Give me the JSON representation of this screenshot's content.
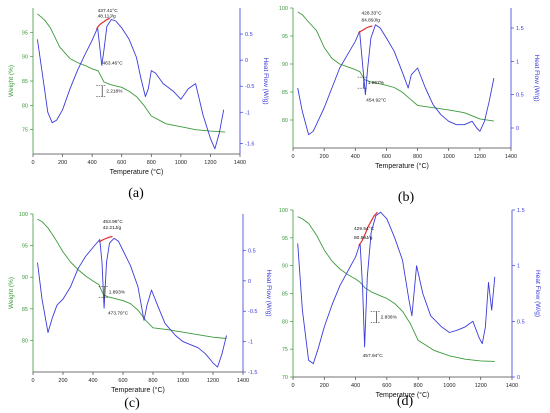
{
  "chart_data": [
    {
      "type": "line",
      "panel_label": "(a)",
      "xlabel": "Temperature (°C)",
      "ylabel_left": "Weight (%)",
      "ylabel_right": "Heat Flow (W/g)",
      "xlim": [
        0,
        1400
      ],
      "ylim_left": [
        70,
        100
      ],
      "ylim_right": [
        -1.8,
        1.0
      ],
      "xticks": [
        0,
        200,
        400,
        600,
        800,
        1000,
        1200,
        1400
      ],
      "yticks_left": [
        75,
        80,
        85,
        90,
        95
      ],
      "yticks_right": [
        -1.6,
        -1.0,
        -0.5,
        0.0,
        0.5
      ],
      "grid": false,
      "series": [
        {
          "axis": "left",
          "color": "#3c9a3c",
          "x": [
            30,
            80,
            120,
            180,
            250,
            300,
            350,
            400,
            440,
            480,
            520,
            560,
            600,
            650,
            700,
            750,
            800,
            900,
            1000,
            1100,
            1200,
            1300
          ],
          "y": [
            98.8,
            97.5,
            95.8,
            92.0,
            89.6,
            88.8,
            88.2,
            87.5,
            87.1,
            84.8,
            84.3,
            84.0,
            83.7,
            82.9,
            81.8,
            80.0,
            77.8,
            76.2,
            75.6,
            75.0,
            74.7,
            74.5
          ]
        },
        {
          "axis": "right",
          "color": "#3b3bdb",
          "x": [
            30,
            60,
            100,
            130,
            160,
            200,
            250,
            300,
            350,
            400,
            437,
            450,
            465,
            480,
            500,
            530,
            560,
            600,
            650,
            700,
            730,
            760,
            780,
            800,
            830,
            880,
            950,
            1000,
            1050,
            1100,
            1150,
            1200,
            1230,
            1260,
            1290
          ],
          "y": [
            0.4,
            -0.2,
            -1.0,
            -1.2,
            -1.15,
            -0.95,
            -0.55,
            -0.2,
            0.1,
            0.38,
            0.62,
            0.3,
            -0.1,
            0.2,
            0.65,
            0.78,
            0.75,
            0.62,
            0.4,
            0.05,
            -0.35,
            -0.7,
            -0.55,
            -0.2,
            -0.25,
            -0.45,
            -0.6,
            -0.75,
            -0.55,
            -0.45,
            -1.05,
            -1.5,
            -1.7,
            -1.4,
            -0.95
          ]
        },
        {
          "axis": "right",
          "color": "#e03030",
          "x": [
            430,
            445,
            460,
            480,
            500,
            520
          ],
          "y": [
            0.6,
            0.66,
            0.7,
            0.74,
            0.78,
            0.8
          ]
        }
      ],
      "annotations": [
        {
          "text": "437.41°C",
          "x": 437,
          "y": 0.92,
          "axis": "right"
        },
        {
          "text": "48.11J/g",
          "x": 437,
          "y": 0.82,
          "axis": "right"
        },
        {
          "text": "463.46°C",
          "x": 470,
          "y": -0.08,
          "axis": "right"
        },
        {
          "text": "2.218%",
          "x": 495,
          "y": 82.6,
          "axis": "left"
        }
      ]
    },
    {
      "type": "line",
      "panel_label": "(b)",
      "xlabel": "Temperature (°C)",
      "ylabel_left": "Weight (%)",
      "ylabel_right": "Heat Flow (W/g)",
      "xlim": [
        0,
        1400
      ],
      "ylim_left": [
        75,
        100
      ],
      "ylim_right": [
        -0.3,
        1.8
      ],
      "xticks": [
        0,
        200,
        400,
        600,
        800,
        1000,
        1200,
        1400
      ],
      "yticks_left": [
        80,
        85,
        90,
        95,
        100
      ],
      "yticks_right": [
        0.0,
        0.5,
        1.0,
        1.5
      ],
      "grid": false,
      "series": [
        {
          "axis": "left",
          "color": "#3c9a3c",
          "x": [
            30,
            60,
            100,
            150,
            200,
            250,
            300,
            350,
            400,
            430,
            460,
            500,
            550,
            600,
            650,
            700,
            750,
            800,
            900,
            1000,
            1100,
            1200,
            1290
          ],
          "y": [
            99.3,
            98.8,
            97.5,
            96.0,
            93.0,
            91.0,
            90.0,
            89.5,
            89.0,
            88.6,
            87.2,
            86.8,
            86.5,
            86.2,
            85.8,
            85.0,
            83.8,
            82.6,
            82.2,
            81.8,
            81.3,
            80.2,
            79.8
          ]
        },
        {
          "axis": "right",
          "color": "#3b3bdb",
          "x": [
            30,
            60,
            100,
            130,
            160,
            200,
            250,
            300,
            350,
            400,
            428,
            445,
            465,
            480,
            500,
            530,
            560,
            600,
            650,
            700,
            740,
            760,
            800,
            850,
            900,
            950,
            1000,
            1050,
            1100,
            1150,
            1180,
            1200,
            1230,
            1260,
            1290
          ],
          "y": [
            0.6,
            0.25,
            -0.1,
            -0.05,
            0.1,
            0.3,
            0.6,
            0.9,
            1.1,
            1.3,
            1.45,
            1.0,
            0.5,
            0.9,
            1.35,
            1.55,
            1.5,
            1.35,
            1.15,
            0.85,
            0.6,
            0.8,
            0.9,
            0.6,
            0.35,
            0.2,
            0.1,
            0.05,
            0.05,
            0.1,
            0.0,
            -0.05,
            0.1,
            0.4,
            0.75
          ]
        },
        {
          "axis": "right",
          "color": "#e03030",
          "x": [
            420,
            435,
            450,
            470,
            490,
            510
          ],
          "y": [
            1.42,
            1.45,
            1.47,
            1.5,
            1.52,
            1.53
          ]
        }
      ],
      "annotations": [
        {
          "text": "428.33°C",
          "x": 440,
          "y": 1.7,
          "axis": "right"
        },
        {
          "text": "84.89J/g",
          "x": 440,
          "y": 1.6,
          "axis": "right"
        },
        {
          "text": "454.92°C",
          "x": 470,
          "y": 0.4,
          "axis": "right"
        },
        {
          "text": "1.867%",
          "x": 480,
          "y": 86.4,
          "axis": "left"
        }
      ]
    },
    {
      "type": "line",
      "panel_label": "(c)",
      "xlabel": "Temperature (°C)",
      "ylabel_left": "Weight (%)",
      "ylabel_right": "Heat Flow (W/g)",
      "xlim": [
        0,
        1400
      ],
      "ylim_left": [
        75,
        100
      ],
      "ylim_right": [
        -1.5,
        1.1
      ],
      "xticks": [
        0,
        200,
        400,
        600,
        800,
        1000,
        1200,
        1400
      ],
      "yticks_left": [
        80,
        85,
        90,
        95,
        100
      ],
      "yticks_right": [
        -1.5,
        -1.0,
        -0.5,
        0.0,
        0.5
      ],
      "grid": false,
      "series": [
        {
          "axis": "left",
          "color": "#3c9a3c",
          "x": [
            30,
            60,
            100,
            150,
            200,
            250,
            300,
            350,
            400,
            440,
            470,
            500,
            550,
            600,
            650,
            700,
            750,
            800,
            900,
            1000,
            1100,
            1200,
            1290
          ],
          "y": [
            99.2,
            98.8,
            97.8,
            96.0,
            94.0,
            92.4,
            91.2,
            90.2,
            89.4,
            88.8,
            87.2,
            86.9,
            86.6,
            86.3,
            85.8,
            84.8,
            83.2,
            82.0,
            81.7,
            81.3,
            80.9,
            80.5,
            80.3
          ]
        },
        {
          "axis": "right",
          "color": "#3b3bdb",
          "x": [
            30,
            60,
            100,
            130,
            160,
            200,
            250,
            300,
            350,
            400,
            445,
            460,
            474,
            490,
            510,
            540,
            570,
            600,
            650,
            700,
            740,
            760,
            790,
            830,
            880,
            950,
            1000,
            1050,
            1100,
            1150,
            1200,
            1230,
            1260,
            1290
          ],
          "y": [
            0.3,
            -0.3,
            -0.85,
            -0.6,
            -0.4,
            -0.3,
            -0.1,
            0.2,
            0.4,
            0.55,
            0.68,
            0.3,
            -0.45,
            0.3,
            0.62,
            0.7,
            0.65,
            0.5,
            0.25,
            -0.1,
            -0.65,
            -0.4,
            -0.15,
            -0.4,
            -0.7,
            -0.9,
            -1.0,
            -1.05,
            -1.1,
            -1.2,
            -1.35,
            -1.42,
            -1.2,
            -0.9
          ]
        },
        {
          "axis": "right",
          "color": "#e03030",
          "x": [
            440,
            455,
            470,
            490,
            510,
            530
          ],
          "y": [
            0.64,
            0.66,
            0.68,
            0.7,
            0.72,
            0.73
          ]
        }
      ],
      "annotations": [
        {
          "text": "453.96°C",
          "x": 465,
          "y": 0.95,
          "axis": "right"
        },
        {
          "text": "42.21J/g",
          "x": 465,
          "y": 0.85,
          "axis": "right"
        },
        {
          "text": "473.79°C",
          "x": 500,
          "y": -0.55,
          "axis": "right"
        },
        {
          "text": "1.893%",
          "x": 505,
          "y": 87.4,
          "axis": "left"
        }
      ]
    },
    {
      "type": "line",
      "panel_label": "(d)",
      "xlabel": "Temperature (°C)",
      "ylabel_left": "Weight (%)",
      "ylabel_right": "Heat Flow (W/g)",
      "xlim": [
        0,
        1400
      ],
      "ylim_left": [
        70,
        100
      ],
      "ylim_right": [
        0.0,
        1.5
      ],
      "xticks": [
        0,
        200,
        400,
        600,
        800,
        1000,
        1200,
        1400
      ],
      "yticks_left": [
        70,
        75,
        80,
        85,
        90,
        95,
        100
      ],
      "yticks_right": [
        0.0,
        0.5,
        1.0,
        1.5
      ],
      "grid": false,
      "series": [
        {
          "axis": "left",
          "color": "#3c9a3c",
          "x": [
            30,
            60,
            100,
            150,
            200,
            250,
            300,
            350,
            400,
            430,
            460,
            500,
            550,
            600,
            650,
            700,
            750,
            800,
            900,
            1000,
            1100,
            1200,
            1290
          ],
          "y": [
            98.8,
            98.4,
            97.6,
            95.5,
            92.8,
            90.8,
            89.4,
            88.4,
            87.6,
            87.0,
            86.0,
            85.3,
            84.7,
            84.1,
            83.2,
            81.8,
            79.6,
            76.6,
            74.8,
            73.8,
            73.2,
            72.9,
            72.8
          ]
        },
        {
          "axis": "right",
          "color": "#3b3bdb",
          "x": [
            30,
            60,
            100,
            130,
            160,
            200,
            250,
            300,
            350,
            400,
            429,
            445,
            458,
            475,
            500,
            530,
            560,
            600,
            650,
            700,
            740,
            760,
            790,
            830,
            880,
            950,
            1000,
            1050,
            1100,
            1150,
            1190,
            1210,
            1230,
            1250,
            1270,
            1290
          ],
          "y": [
            1.2,
            0.6,
            0.15,
            0.12,
            0.25,
            0.45,
            0.65,
            0.82,
            0.95,
            1.08,
            1.2,
            0.8,
            0.27,
            0.9,
            1.3,
            1.45,
            1.48,
            1.42,
            1.25,
            1.05,
            0.7,
            0.55,
            1.0,
            0.75,
            0.55,
            0.45,
            0.4,
            0.42,
            0.45,
            0.5,
            0.35,
            0.3,
            0.45,
            0.85,
            0.6,
            0.9
          ]
        },
        {
          "axis": "right",
          "color": "#e03030",
          "x": [
            420,
            440,
            460,
            480,
            500,
            520,
            540
          ],
          "y": [
            1.18,
            1.22,
            1.28,
            1.35,
            1.4,
            1.45,
            1.48
          ]
        }
      ],
      "annotations": [
        {
          "text": "429.54°C",
          "x": 390,
          "y": 1.32,
          "axis": "right"
        },
        {
          "text": "80.59J/g",
          "x": 390,
          "y": 1.24,
          "axis": "right"
        },
        {
          "text": "457.94°C",
          "x": 445,
          "y": 0.18,
          "axis": "right"
        },
        {
          "text": "2.836%",
          "x": 560,
          "y": 80.5,
          "axis": "left"
        }
      ]
    }
  ]
}
